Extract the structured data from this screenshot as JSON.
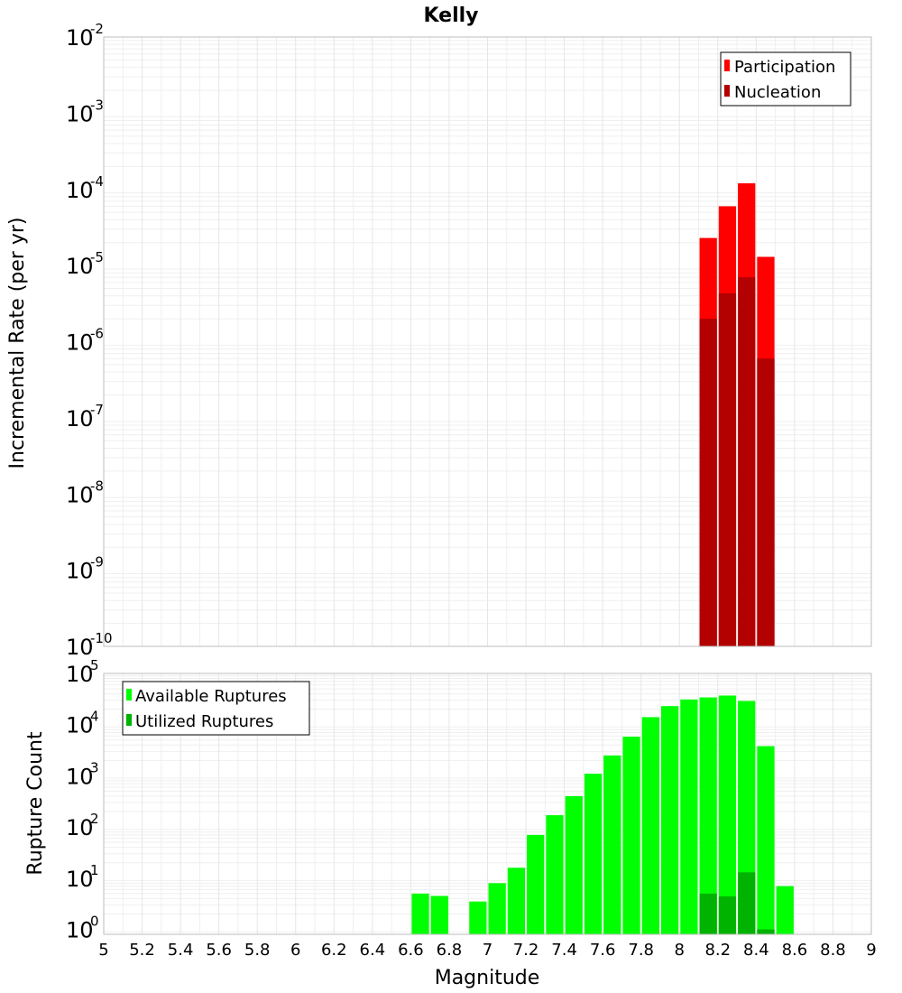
{
  "chart_data": [
    {
      "type": "bar",
      "title": "Kelly",
      "xlabel": "Magnitude",
      "ylabel": "Incremental Rate (per yr)",
      "yscale": "log",
      "xlim": [
        5,
        9
      ],
      "ylim": [
        1e-10,
        0.01
      ],
      "y_ticks": [
        {
          "base": "10",
          "exp": "-2"
        },
        {
          "base": "10",
          "exp": "-3"
        },
        {
          "base": "10",
          "exp": "-4"
        },
        {
          "base": "10",
          "exp": "-5"
        },
        {
          "base": "10",
          "exp": "-6"
        },
        {
          "base": "10",
          "exp": "-7"
        },
        {
          "base": "10",
          "exp": "-8"
        },
        {
          "base": "10",
          "exp": "-9"
        },
        {
          "base": "10",
          "exp": "-10"
        }
      ],
      "legend_position": "top-right",
      "series": [
        {
          "name": "Participation",
          "color": "#ff0000",
          "x": [
            8.15,
            8.25,
            8.35,
            8.45
          ],
          "values": [
            2.3e-05,
            6e-05,
            0.00012,
            1.3e-05
          ]
        },
        {
          "name": "Nucleation",
          "color": "#b30000",
          "x": [
            8.15,
            8.25,
            8.35,
            8.45
          ],
          "values": [
            2e-06,
            4.3e-06,
            7e-06,
            6e-07
          ]
        }
      ]
    },
    {
      "type": "bar",
      "title": "",
      "xlabel": "Magnitude",
      "ylabel": "Rupture Count",
      "yscale": "log",
      "xlim": [
        5,
        9
      ],
      "ylim": [
        0.8,
        100000.0
      ],
      "x_ticks": [
        "5",
        "5.2",
        "5.4",
        "5.6",
        "5.8",
        "6",
        "6.2",
        "6.4",
        "6.6",
        "6.8",
        "7",
        "7.2",
        "7.4",
        "7.6",
        "7.8",
        "8",
        "8.2",
        "8.4",
        "8.6",
        "8.8",
        "9"
      ],
      "y_ticks": [
        {
          "base": "10",
          "exp": "5"
        },
        {
          "base": "10",
          "exp": "4"
        },
        {
          "base": "10",
          "exp": "3"
        },
        {
          "base": "10",
          "exp": "2"
        },
        {
          "base": "10",
          "exp": "1"
        },
        {
          "base": "10",
          "exp": "0"
        }
      ],
      "legend_position": "top-left",
      "series": [
        {
          "name": "Available Ruptures",
          "color": "#00ff00",
          "x": [
            6.65,
            6.75,
            6.95,
            7.05,
            7.15,
            7.25,
            7.35,
            7.45,
            7.55,
            7.65,
            7.75,
            7.85,
            7.95,
            8.05,
            8.15,
            8.25,
            8.35,
            8.45,
            8.55
          ],
          "values": [
            5,
            4.5,
            3.5,
            8,
            16,
            70,
            170,
            400,
            1100,
            2500,
            5800,
            14000,
            23000,
            31000,
            34000,
            37000,
            29000,
            3800,
            7
          ]
        },
        {
          "name": "Utilized Ruptures",
          "color": "#00b300",
          "x": [
            8.15,
            8.25,
            8.35,
            8.45
          ],
          "values": [
            5,
            4.4,
            13,
            1
          ]
        }
      ]
    }
  ]
}
